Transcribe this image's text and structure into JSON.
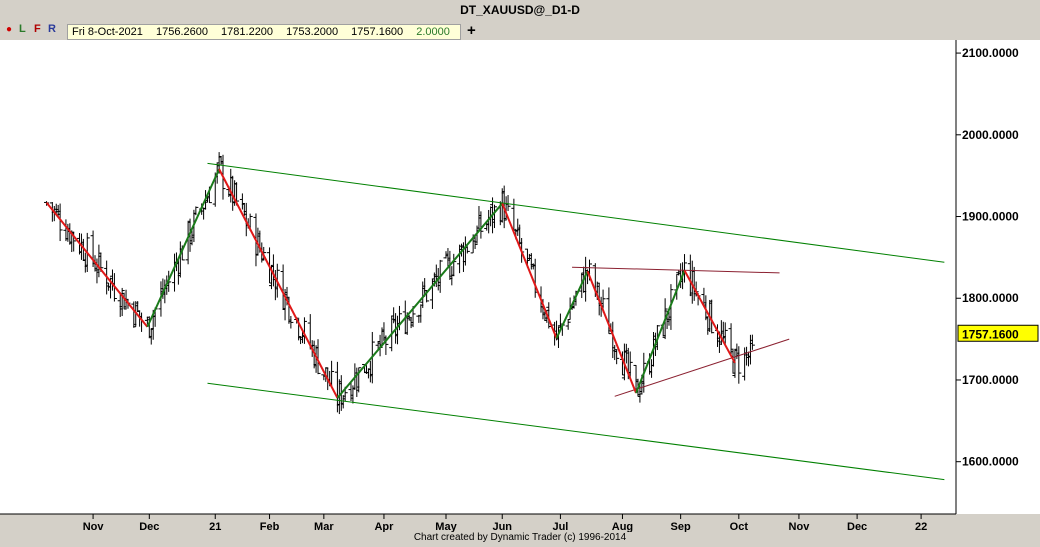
{
  "window": {
    "title": "DT_XAUUSD@_D1-D"
  },
  "toolbar": {
    "buttons": [
      "L",
      "F",
      "R"
    ],
    "date": "Fri 8-Oct-2021",
    "open": "1756.2600",
    "high": "1781.2200",
    "low": "1753.2000",
    "close": "1757.1600",
    "range": "2.0000"
  },
  "footer": {
    "credit": "Chart created by Dynamic Trader  (c) 1996-2014"
  },
  "chart_data": {
    "type": "ohlc",
    "symbol": "DT_XAUUSD@_D1-D",
    "y_ticks": [
      "2100.0000",
      "2000.0000",
      "1900.0000",
      "1800.0000",
      "1700.0000",
      "1600.0000"
    ],
    "y_tick_values": [
      2100,
      2000,
      1900,
      1800,
      1700,
      1600
    ],
    "ylim": [
      1536,
      2116
    ],
    "last_price": "1757.1600",
    "last_price_value": 1757.16,
    "x_ticks": [
      "Nov",
      "Dec",
      "21",
      "Feb",
      "Mar",
      "Apr",
      "May",
      "Jun",
      "Jul",
      "Aug",
      "Sep",
      "Oct",
      "Nov",
      "Dec",
      "22"
    ],
    "x_tick_dates": [
      "2020-11-02",
      "2020-12-01",
      "2021-01-04",
      "2021-02-01",
      "2021-03-01",
      "2021-04-01",
      "2021-05-03",
      "2021-06-01",
      "2021-07-01",
      "2021-08-02",
      "2021-09-01",
      "2021-10-01",
      "2021-11-01",
      "2021-12-01",
      "2022-01-03"
    ],
    "series": [
      {
        "style": "zigzag",
        "points": [
          {
            "date": "2020-10-09",
            "price": 1917,
            "dir": "down"
          },
          {
            "date": "2020-11-30",
            "price": 1765,
            "dir": "up"
          },
          {
            "date": "2021-01-06",
            "price": 1958,
            "dir": "down"
          },
          {
            "date": "2021-03-08",
            "price": 1678,
            "dir": "up"
          },
          {
            "date": "2021-06-01",
            "price": 1916,
            "dir": "down"
          },
          {
            "date": "2021-06-29",
            "price": 1751,
            "dir": "up"
          },
          {
            "date": "2021-07-15",
            "price": 1833,
            "dir": "down"
          },
          {
            "date": "2021-08-09",
            "price": 1684,
            "dir": "up"
          },
          {
            "date": "2021-09-03",
            "price": 1834,
            "dir": "down"
          },
          {
            "date": "2021-09-29",
            "price": 1721,
            "dir": null
          }
        ]
      }
    ],
    "trendlines": [
      {
        "color": "#008000",
        "from": {
          "date": "2020-12-31",
          "price": 1965
        },
        "to": {
          "date": "2022-01-15",
          "price": 1844
        }
      },
      {
        "color": "#008000",
        "from": {
          "date": "2020-12-31",
          "price": 1696
        },
        "to": {
          "date": "2022-01-15",
          "price": 1578
        }
      },
      {
        "color": "#8b2030",
        "from": {
          "date": "2021-07-07",
          "price": 1838
        },
        "to": {
          "date": "2021-10-22",
          "price": 1831
        }
      },
      {
        "color": "#8b2030",
        "from": {
          "date": "2021-07-29",
          "price": 1680
        },
        "to": {
          "date": "2021-10-27",
          "price": 1750
        }
      }
    ],
    "grid": false
  },
  "colors": {
    "background": "#d4d0c8",
    "plot_bg": "#ffffff",
    "bars": "#000000",
    "swing_up": "#1a7a1a",
    "swing_down": "#e01818",
    "channel": "#008000",
    "triangle": "#8b2030",
    "price_label_bg": "#ffff00"
  }
}
